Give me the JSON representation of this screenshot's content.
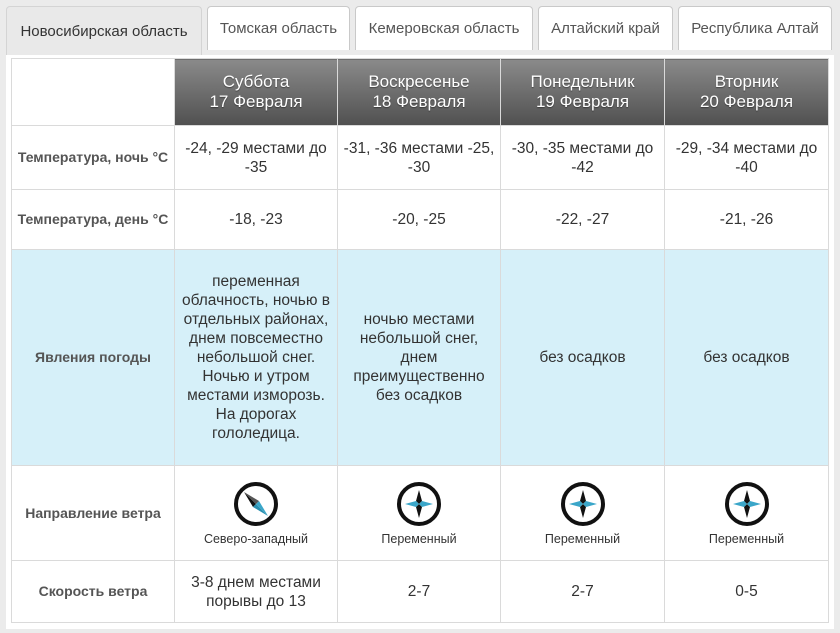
{
  "tabs": [
    {
      "label": "Новосибирская область",
      "active": true
    },
    {
      "label": "Томская область",
      "active": false
    },
    {
      "label": "Кемеровская область",
      "active": false
    },
    {
      "label": "Алтайский край",
      "active": false
    },
    {
      "label": "Республика Алтай",
      "active": false
    }
  ],
  "days": [
    {
      "weekday": "Суббота",
      "date": "17 Февраля"
    },
    {
      "weekday": "Воскресенье",
      "date": "18 Февраля"
    },
    {
      "weekday": "Понедельник",
      "date": "19 Февраля"
    },
    {
      "weekday": "Вторник",
      "date": "20 Февраля"
    }
  ],
  "rows": {
    "temp_night": {
      "label": "Температура, ночь °С",
      "values": [
        "-24, -29 местами до -35",
        "-31, -36 местами -25, -30",
        "-30, -35 местами до -42",
        "-29, -34 местами до -40"
      ]
    },
    "temp_day": {
      "label": "Температура, день °С",
      "values": [
        "-18, -23",
        "-20, -25",
        "-22, -27",
        "-21, -26"
      ]
    },
    "weather": {
      "label": "Явления погоды",
      "values": [
        "переменная облачность, ночью в отдельных районах, днем повсеместно небольшой снег. Ночью и утром местами изморозь. На дорогах гололедица.",
        "ночью местами небольшой снег, днем преимущественно без осадков",
        "без осадков",
        "без осадков"
      ]
    },
    "wind_dir": {
      "label": "Направление ветра",
      "values": [
        "Северо-западный",
        "Переменный",
        "Переменный",
        "Переменный"
      ],
      "icons": [
        "compass-northwest-icon",
        "compass-variable-icon",
        "compass-variable-icon",
        "compass-variable-icon"
      ]
    },
    "wind_speed": {
      "label": "Скорость ветра",
      "values": [
        "3-8 днем местами порывы до 13",
        "2-7",
        "2-7",
        "0-5"
      ]
    }
  },
  "colors": {
    "weather_row_bg": "#d6f0f9",
    "compass_accent": "#3aa6c9",
    "header_top": "#8a8a8a",
    "header_bottom": "#505050"
  }
}
